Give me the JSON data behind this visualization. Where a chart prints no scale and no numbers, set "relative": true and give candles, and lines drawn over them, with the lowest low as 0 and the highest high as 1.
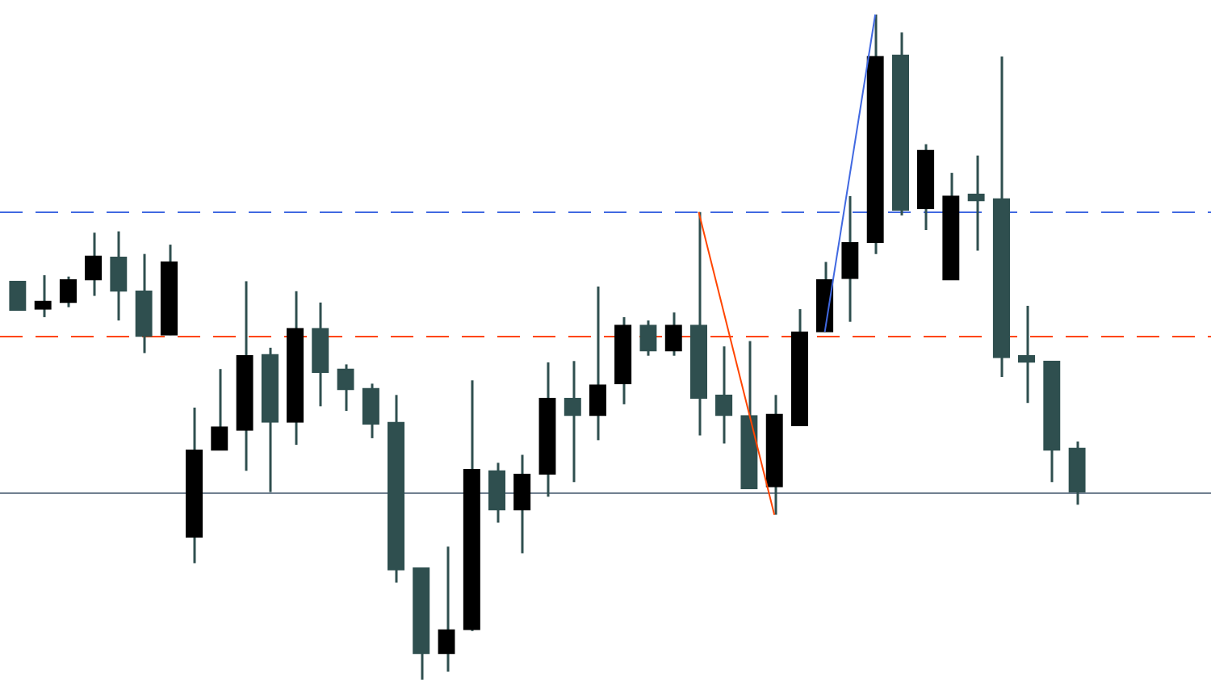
{
  "chart_data": {
    "type": "candlestick",
    "relative": true,
    "tick_labels": false,
    "grid": false,
    "legend": false,
    "categories": [
      null,
      null,
      null,
      null,
      null,
      null,
      null,
      null,
      null,
      null,
      null,
      null,
      null,
      null,
      null,
      null,
      null,
      null,
      null,
      null,
      null,
      null,
      null,
      null,
      null,
      null,
      null,
      null,
      null,
      null,
      null,
      null,
      null,
      null,
      null,
      null,
      null,
      null,
      null,
      null,
      null,
      null,
      null
    ],
    "series": [
      {
        "color": "#2f4f4f",
        "ohlc": [
          [
            0.599,
            0.599,
            0.555,
            0.555
          ],
          [
            0.557,
            0.608,
            0.545,
            0.569
          ],
          [
            0.567,
            0.606,
            0.56,
            0.601
          ],
          [
            0.601,
            0.672,
            0.577,
            0.637
          ],
          [
            0.635,
            0.674,
            0.54,
            0.584
          ],
          [
            0.584,
            0.64,
            0.491,
            0.516
          ],
          [
            0.518,
            0.654,
            0.518,
            0.628
          ],
          [
            0.214,
            0.409,
            0.175,
            0.345
          ],
          [
            0.345,
            0.467,
            0.345,
            0.38
          ],
          [
            0.375,
            0.599,
            0.314,
            0.487
          ],
          [
            0.489,
            0.499,
            0.282,
            0.387
          ],
          [
            0.387,
            0.584,
            0.353,
            0.528
          ],
          [
            0.528,
            0.567,
            0.411,
            0.462
          ],
          [
            0.467,
            0.474,
            0.404,
            0.436
          ],
          [
            0.438,
            0.445,
            0.363,
            0.384
          ],
          [
            0.387,
            0.428,
            0.146,
            0.165
          ],
          [
            0.168,
            0.168,
            0,
            0.039
          ],
          [
            0.039,
            0.2,
            0.012,
            0.075
          ],
          [
            0.075,
            0.45,
            0.073,
            0.316
          ],
          [
            0.314,
            0.326,
            0.236,
            0.255
          ],
          [
            0.255,
            0.338,
            0.19,
            0.309
          ],
          [
            0.309,
            0.477,
            0.275,
            0.423
          ],
          [
            0.423,
            0.479,
            0.297,
            0.397
          ],
          [
            0.397,
            0.591,
            0.36,
            0.443
          ],
          [
            0.445,
            0.545,
            0.414,
            0.533
          ],
          [
            0.533,
            0.54,
            0.487,
            0.494
          ],
          [
            0.494,
            0.552,
            0.487,
            0.533
          ],
          [
            0.533,
            0.703,
            0.367,
            0.423
          ],
          [
            0.428,
            0.501,
            0.355,
            0.397
          ],
          [
            0.397,
            0.509,
            0.287,
            0.287
          ],
          [
            0.29,
            0.428,
            0.248,
            0.399
          ],
          [
            0.382,
            0.557,
            0.382,
            0.523
          ],
          [
            0.523,
            0.628,
            0.523,
            0.601
          ],
          [
            0.603,
            0.727,
            0.538,
            0.657
          ],
          [
            0.657,
            1,
            0.64,
            0.937
          ],
          [
            0.939,
            0.973,
            0.698,
            0.706
          ],
          [
            0.708,
            0.805,
            0.676,
            0.796
          ],
          [
            0.601,
            0.762,
            0.601,
            0.727
          ],
          [
            0.73,
            0.788,
            0.645,
            0.72
          ],
          [
            0.723,
            0.937,
            0.455,
            0.484
          ],
          [
            0.487,
            0.562,
            0.416,
            0.477
          ],
          [
            0.479,
            0.479,
            0.297,
            0.345
          ],
          [
            0.348,
            0.358,
            0.263,
            0.282
          ]
        ],
        "colors": [
          "#2f4f4f",
          "#000000",
          "#000000",
          "#000000",
          "#2f4f4f",
          "#2f4f4f",
          "#000000",
          "#000000",
          "#000000",
          "#000000",
          "#2f4f4f",
          "#000000",
          "#2f4f4f",
          "#2f4f4f",
          "#2f4f4f",
          "#2f4f4f",
          "#2f4f4f",
          "#000000",
          "#000000",
          "#2f4f4f",
          "#000000",
          "#000000",
          "#2f4f4f",
          "#000000",
          "#000000",
          "#2f4f4f",
          "#000000",
          "#2f4f4f",
          "#2f4f4f",
          "#2f4f4f",
          "#000000",
          "#000000",
          "#000000",
          "#000000",
          "#000000",
          "#2f4f4f",
          "#000000",
          "#000000",
          "#2f4f4f",
          "#2f4f4f",
          "#2f4f4f",
          "#2f4f4f",
          "#2f4f4f"
        ]
      },
      {
        "type": "line",
        "color": "#ff4500",
        "values": [
          null,
          null,
          null,
          null,
          null,
          null,
          null,
          null,
          null,
          null,
          null,
          null,
          null,
          null,
          null,
          null,
          null,
          null,
          null,
          null,
          null,
          null,
          null,
          null,
          null,
          null,
          null,
          0.703,
          null,
          null,
          0.248,
          null,
          null,
          null,
          null,
          null,
          null,
          null,
          null,
          null,
          null,
          null,
          null
        ]
      },
      {
        "type": "line",
        "color": "#4169e1",
        "values": [
          null,
          null,
          null,
          null,
          null,
          null,
          null,
          null,
          null,
          null,
          null,
          null,
          null,
          null,
          null,
          null,
          null,
          null,
          null,
          null,
          null,
          null,
          null,
          null,
          null,
          null,
          null,
          null,
          null,
          null,
          null,
          null,
          0.523,
          null,
          1,
          null,
          null,
          null,
          null,
          null,
          null,
          null,
          null
        ]
      }
    ],
    "ref_lines": [
      {
        "axis": "y",
        "value": 0.703,
        "color": "#4169e1",
        "line_style": "dashed"
      },
      {
        "axis": "y",
        "value": 0.518,
        "color": "#ff4500",
        "line_style": "dashed"
      },
      {
        "axis": "y",
        "value": 0.282,
        "color": "#708090",
        "line_style": "solid"
      }
    ]
  }
}
